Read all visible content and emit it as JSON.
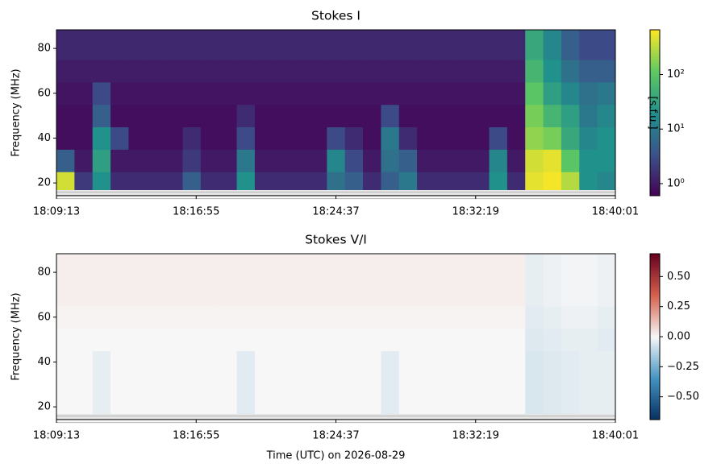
{
  "chart_data": [
    {
      "type": "heatmap",
      "title": "Stokes I",
      "ylabel": "Frequency (MHz)",
      "colorbar_label": "[s.f.u.]",
      "colormap": "viridis",
      "log_color": true,
      "xlim": [
        "18:09:13",
        "18:40:01"
      ],
      "xticks": [
        "18:09:13",
        "18:16:55",
        "18:24:37",
        "18:32:19",
        "18:40:01"
      ],
      "ylim": [
        14.3,
        88.3
      ],
      "yticks": [
        20,
        40,
        60,
        80
      ],
      "y_edges": [
        17,
        25,
        35,
        45,
        55,
        65,
        75,
        88.3
      ],
      "clim": [
        0.6,
        660
      ],
      "cticks": [
        {
          "value": 1,
          "label": "10⁰"
        },
        {
          "value": 10,
          "label": "10¹"
        },
        {
          "value": 100,
          "label": "10²"
        }
      ],
      "z": [
        [
          400,
          2,
          20,
          1.5,
          1.5,
          1.5,
          1.5,
          5,
          1.5,
          1.5,
          20,
          1.5,
          1.5,
          1.5,
          1.5,
          8,
          5,
          1.5,
          5,
          10,
          1.5,
          1.5,
          1.5,
          1.5,
          20,
          1.5,
          500,
          600,
          300,
          20,
          15
        ],
        [
          5,
          1,
          30,
          1,
          1,
          1,
          1,
          2,
          1,
          1,
          10,
          1,
          1,
          1,
          1,
          15,
          3,
          1,
          8,
          5,
          1,
          1,
          1,
          1,
          15,
          1,
          400,
          500,
          100,
          20,
          20
        ],
        [
          0.8,
          0.8,
          20,
          3,
          0.8,
          0.8,
          0.8,
          1.5,
          0.8,
          0.8,
          3,
          0.8,
          0.8,
          0.8,
          0.8,
          3,
          1.5,
          0.8,
          10,
          1.5,
          0.8,
          0.8,
          0.8,
          0.8,
          3,
          0.8,
          200,
          150,
          40,
          15,
          20
        ],
        [
          0.8,
          0.8,
          5,
          0.8,
          0.8,
          0.8,
          0.8,
          0.8,
          0.8,
          0.8,
          1.5,
          0.8,
          0.8,
          0.8,
          0.8,
          0.8,
          0.8,
          0.8,
          3,
          0.8,
          0.8,
          0.8,
          0.8,
          0.8,
          0.8,
          0.8,
          150,
          60,
          30,
          10,
          15
        ],
        [
          0.9,
          0.9,
          3,
          0.9,
          0.9,
          0.9,
          0.9,
          0.9,
          0.9,
          0.9,
          0.9,
          0.9,
          0.9,
          0.9,
          0.9,
          0.9,
          0.9,
          0.9,
          0.9,
          0.9,
          0.9,
          0.9,
          0.9,
          0.9,
          0.9,
          0.9,
          100,
          30,
          15,
          8,
          10
        ],
        [
          1.1,
          1.1,
          1.1,
          1.1,
          1.1,
          1.1,
          1.1,
          1.1,
          1.1,
          1.1,
          1.1,
          1.1,
          1.1,
          1.1,
          1.1,
          1.1,
          1.1,
          1.1,
          1.1,
          1.1,
          1.1,
          1.1,
          1.1,
          1.1,
          1.1,
          1.1,
          60,
          20,
          8,
          5,
          5
        ],
        [
          1.4,
          1.4,
          1.4,
          1.4,
          1.4,
          1.4,
          1.4,
          1.4,
          1.4,
          1.4,
          1.4,
          1.4,
          1.4,
          1.4,
          1.4,
          1.4,
          1.4,
          1.4,
          1.4,
          1.4,
          1.4,
          1.4,
          1.4,
          1.4,
          1.4,
          1.4,
          40,
          15,
          5,
          3,
          3
        ]
      ]
    },
    {
      "type": "heatmap",
      "title": "Stokes V/I",
      "ylabel": "Frequency (MHz)",
      "xlabel": "Time (UTC) on 2026-08-29",
      "colormap": "RdBu_r",
      "log_color": false,
      "xlim": [
        "18:09:13",
        "18:40:01"
      ],
      "xticks": [
        "18:09:13",
        "18:16:55",
        "18:24:37",
        "18:32:19",
        "18:40:01"
      ],
      "ylim": [
        14.3,
        88.3
      ],
      "yticks": [
        20,
        40,
        60,
        80
      ],
      "y_edges": [
        17,
        25,
        35,
        45,
        55,
        65,
        75,
        88.3
      ],
      "clim": [
        -0.69,
        0.69
      ],
      "cticks": [
        {
          "value": -0.5,
          "label": "−0.50"
        },
        {
          "value": -0.25,
          "label": "−0.25"
        },
        {
          "value": 0,
          "label": "0.00"
        },
        {
          "value": 0.25,
          "label": "0.25"
        },
        {
          "value": 0.5,
          "label": "0.50"
        }
      ],
      "z": [
        [
          0,
          0,
          -0.03,
          0,
          0,
          0,
          0,
          0,
          0,
          0,
          -0.04,
          0,
          0,
          0,
          0,
          0,
          0,
          0,
          -0.04,
          0,
          0,
          0,
          0,
          0,
          0,
          0,
          -0.06,
          -0.05,
          -0.04,
          -0.03,
          -0.03
        ],
        [
          0,
          0,
          -0.03,
          0,
          0,
          0,
          0,
          0,
          0,
          0,
          -0.04,
          0,
          0,
          0,
          0,
          0,
          0,
          0,
          -0.04,
          0,
          0,
          0,
          0,
          0,
          0,
          0,
          -0.06,
          -0.05,
          -0.04,
          -0.03,
          -0.03
        ],
        [
          0,
          0,
          -0.03,
          0,
          0,
          0,
          0,
          0,
          0,
          0,
          -0.04,
          0,
          0,
          0,
          0,
          0,
          0,
          0,
          -0.04,
          0,
          0,
          0,
          0,
          0,
          0,
          0,
          -0.06,
          -0.05,
          -0.04,
          -0.03,
          -0.03
        ],
        [
          0,
          0,
          0,
          0,
          0,
          0,
          0,
          0,
          0,
          0,
          0,
          0,
          0,
          0,
          0,
          0,
          0,
          0,
          0,
          0,
          0,
          0,
          0,
          0,
          0,
          0,
          -0.05,
          -0.04,
          -0.03,
          -0.03,
          -0.04
        ],
        [
          0.01,
          0.01,
          0.01,
          0.01,
          0.01,
          0.01,
          0.01,
          0.01,
          0.01,
          0.01,
          0.01,
          0.01,
          0.01,
          0.01,
          0.01,
          0.01,
          0.01,
          0.01,
          0.01,
          0.01,
          0.01,
          0.01,
          0.01,
          0.01,
          0.01,
          0.01,
          -0.04,
          -0.03,
          -0.02,
          -0.02,
          -0.03
        ],
        [
          0.02,
          0.02,
          0.02,
          0.02,
          0.02,
          0.02,
          0.02,
          0.02,
          0.02,
          0.02,
          0.02,
          0.02,
          0.02,
          0.02,
          0.02,
          0.02,
          0.02,
          0.02,
          0.02,
          0.02,
          0.02,
          0.02,
          0.02,
          0.02,
          0.02,
          0.02,
          -0.03,
          -0.02,
          -0.01,
          -0.01,
          -0.02
        ],
        [
          0.02,
          0.02,
          0.02,
          0.02,
          0.02,
          0.02,
          0.02,
          0.02,
          0.02,
          0.02,
          0.02,
          0.02,
          0.02,
          0.02,
          0.02,
          0.02,
          0.02,
          0.02,
          0.02,
          0.02,
          0.02,
          0.02,
          0.02,
          0.02,
          0.02,
          0.02,
          -0.03,
          -0.02,
          -0.01,
          -0.01,
          -0.02
        ]
      ]
    }
  ]
}
